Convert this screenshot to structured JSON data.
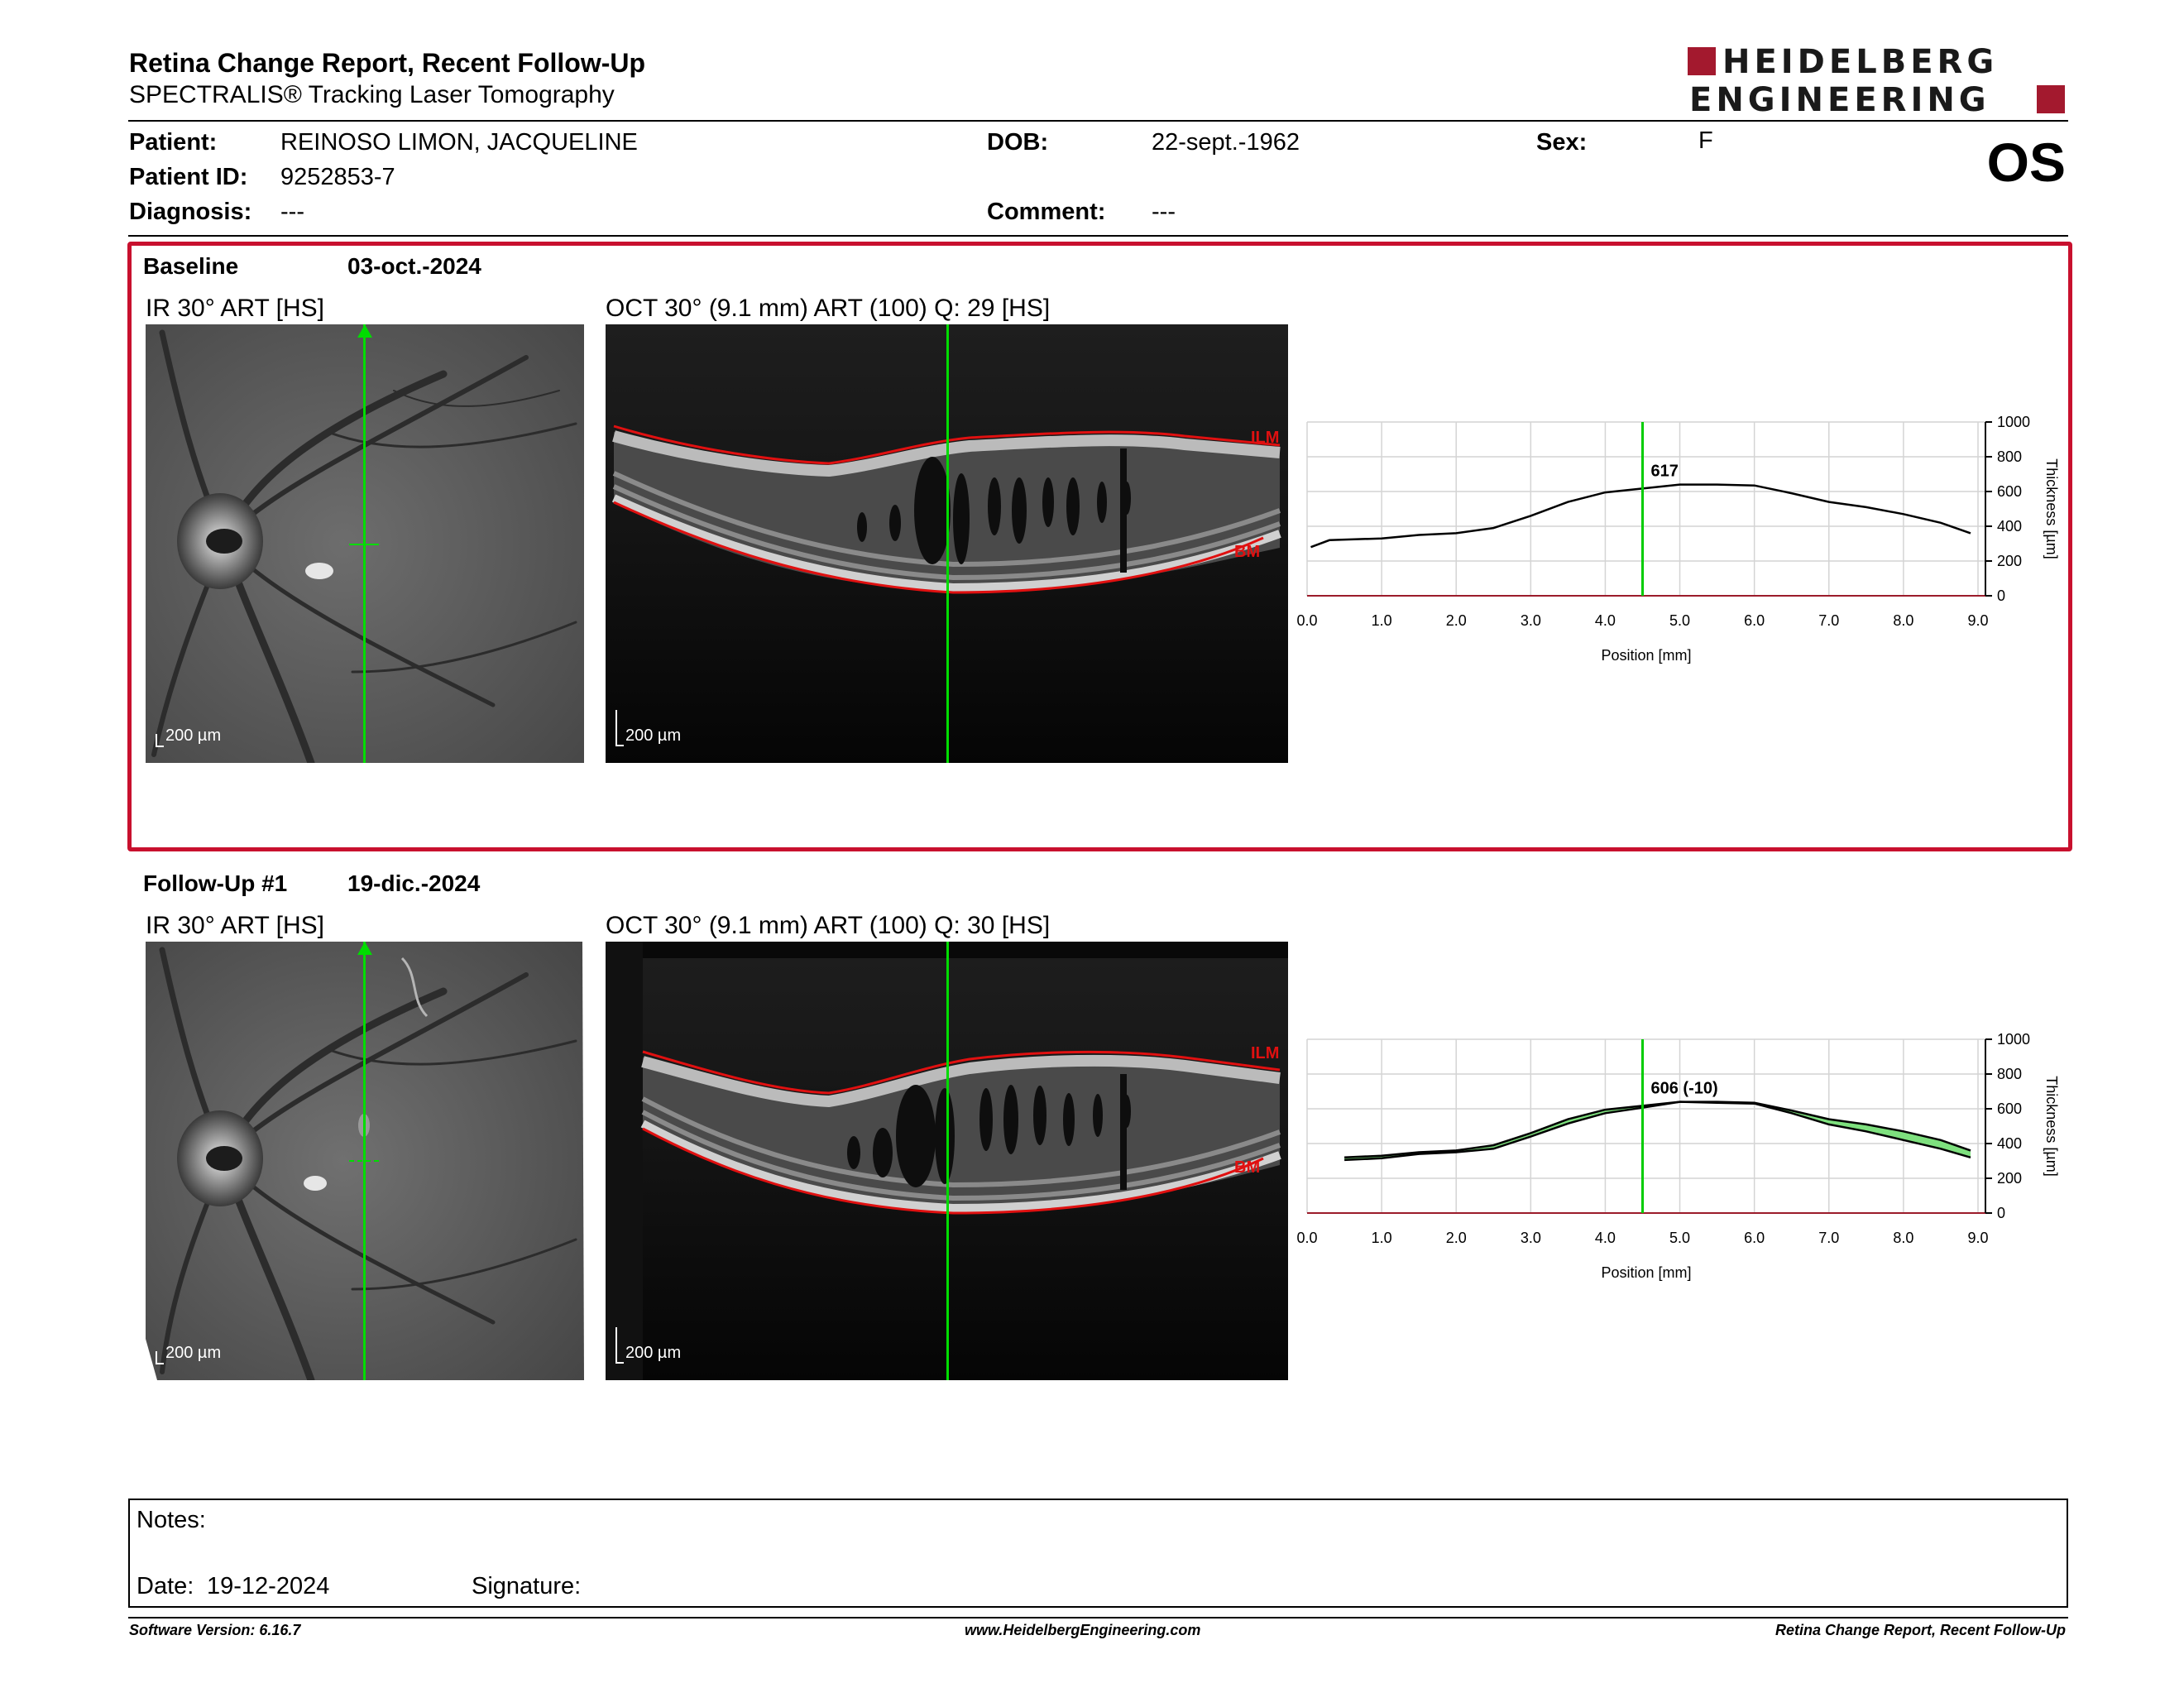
{
  "header": {
    "title": "Retina Change Report, Recent Follow-Up",
    "subtitle": "SPECTRALIS® Tracking Laser Tomography",
    "brand_line1": "HEIDELBERG",
    "brand_line2": "ENGINEERING",
    "brand_color": "#a3192e"
  },
  "patient": {
    "patient_label": "Patient:",
    "patient_name": "REINOSO LIMON, JACQUELINE",
    "id_label": "Patient ID:",
    "id_value": "9252853-7",
    "diagnosis_label": "Diagnosis:",
    "diagnosis_value": "---",
    "dob_label": "DOB:",
    "dob_value": "22-sept.-1962",
    "comment_label": "Comment:",
    "comment_value": "---",
    "sex_label": "Sex:",
    "sex_value": "F",
    "eye": "OS"
  },
  "baseline": {
    "label": "Baseline",
    "date": "03-oct.-2024",
    "ir_title": "IR 30° ART [HS]",
    "oct_title": "OCT 30° (9.1 mm) ART (100) Q: 29 [HS]",
    "scale": "200 µm",
    "ilm": "ILM",
    "bm": "BM",
    "highlight_color": "#c8102e"
  },
  "followup": {
    "label": "Follow-Up #1",
    "date": "19-dic.-2024",
    "ir_title": "IR 30° ART [HS]",
    "oct_title": "OCT 30° (9.1 mm) ART (100) Q: 30 [HS]",
    "scale": "200 µm",
    "ilm": "ILM",
    "bm": "BM"
  },
  "chart_data": [
    {
      "type": "line",
      "xlabel": "Position [mm]",
      "ylabel": "Thickness [µm]",
      "xlim": [
        0,
        9.1
      ],
      "ylim": [
        0,
        1000
      ],
      "x_ticks": [
        "0.0",
        "1.0",
        "2.0",
        "3.0",
        "4.0",
        "5.0",
        "6.0",
        "7.0",
        "8.0",
        "9.0"
      ],
      "y_ticks": [
        "0",
        "200",
        "400",
        "600",
        "800",
        "1000"
      ],
      "grid": true,
      "marker_position": 4.5,
      "marker_label": "617",
      "marker_color": "#00cc00",
      "series": [
        {
          "x": [
            0.05,
            0.3,
            1.0,
            1.5,
            2.0,
            2.5,
            3.0,
            3.5,
            4.0,
            4.5,
            5.0,
            5.5,
            6.0,
            6.5,
            7.0,
            7.5,
            8.0,
            8.5,
            8.9
          ],
          "values": [
            280,
            320,
            330,
            350,
            360,
            390,
            460,
            540,
            595,
            617,
            640,
            640,
            635,
            590,
            540,
            510,
            470,
            420,
            360
          ]
        }
      ]
    },
    {
      "type": "line",
      "xlabel": "Position [mm]",
      "ylabel": "Thickness [µm]",
      "xlim": [
        0,
        9.1
      ],
      "ylim": [
        0,
        1000
      ],
      "x_ticks": [
        "0.0",
        "1.0",
        "2.0",
        "3.0",
        "4.0",
        "5.0",
        "6.0",
        "7.0",
        "8.0",
        "9.0"
      ],
      "y_ticks": [
        "0",
        "200",
        "400",
        "600",
        "800",
        "1000"
      ],
      "grid": true,
      "marker_position": 4.5,
      "marker_label": "606 (-10)",
      "marker_color": "#00cc00",
      "fill_color": "#7ee07e",
      "series": [
        {
          "x": [
            0.5,
            1.0,
            1.5,
            2.0,
            2.5,
            3.0,
            3.5,
            4.0,
            4.5,
            5.0,
            5.5,
            6.0,
            6.5,
            7.0,
            7.5,
            8.0,
            8.5,
            8.9
          ],
          "values": [
            305,
            315,
            340,
            350,
            370,
            440,
            515,
            575,
            606,
            640,
            635,
            630,
            575,
            510,
            470,
            420,
            370,
            320
          ]
        },
        {
          "x": [
            0.5,
            1.0,
            1.5,
            2.0,
            2.5,
            3.0,
            3.5,
            4.0,
            4.5,
            5.0,
            5.5,
            6.0,
            6.5,
            7.0,
            7.5,
            8.0,
            8.5,
            8.9
          ],
          "values": [
            320,
            330,
            350,
            360,
            390,
            460,
            540,
            595,
            617,
            640,
            640,
            635,
            590,
            540,
            510,
            470,
            420,
            360
          ]
        }
      ]
    }
  ],
  "notes": {
    "label": "Notes:",
    "date_label": "Date:",
    "date_value": "19-12-2024",
    "signature_label": "Signature:"
  },
  "footer": {
    "software": "Software Version: 6.16.7",
    "url": "www.HeidelbergEngineering.com",
    "report_name": "Retina Change Report, Recent Follow-Up"
  }
}
